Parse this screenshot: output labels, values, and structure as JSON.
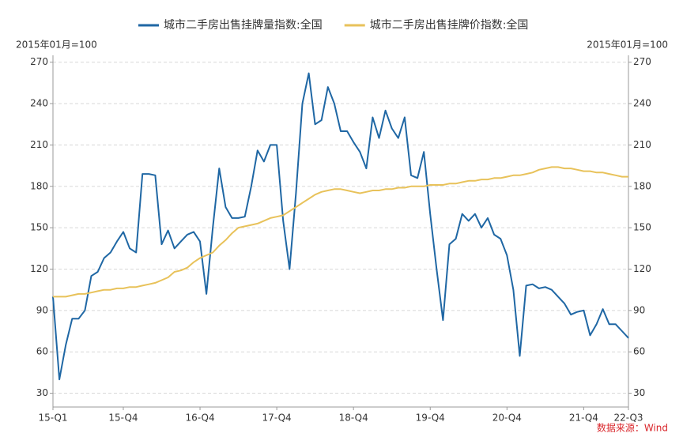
{
  "chart_data": {
    "type": "line",
    "legend_position": "top",
    "y_label": "2015年01月=100",
    "y2_label": "2015年01月=100",
    "source": "数据来源：Wind",
    "categories": [
      "15-Q1",
      null,
      null,
      null,
      null,
      null,
      null,
      null,
      null,
      null,
      null,
      "15-Q4",
      null,
      null,
      null,
      null,
      null,
      null,
      null,
      null,
      null,
      null,
      null,
      "16-Q4",
      null,
      null,
      null,
      null,
      null,
      null,
      null,
      null,
      null,
      null,
      null,
      "17-Q4",
      null,
      null,
      null,
      null,
      null,
      null,
      null,
      null,
      null,
      null,
      null,
      "18-Q4",
      null,
      null,
      null,
      null,
      null,
      null,
      null,
      null,
      null,
      null,
      null,
      "19-Q4",
      null,
      null,
      null,
      null,
      null,
      null,
      null,
      null,
      null,
      null,
      null,
      "20-Q4",
      null,
      null,
      null,
      null,
      null,
      null,
      null,
      null,
      null,
      null,
      null,
      "21-Q4",
      null,
      null,
      null,
      null,
      null,
      null,
      "22-Q3"
    ],
    "series": [
      {
        "name": "城市二手房出售挂牌量指数:全国",
        "color": "#1f67a4",
        "values": [
          100,
          40,
          65,
          84,
          84,
          90,
          115,
          118,
          128,
          132,
          140,
          147,
          135,
          132,
          189,
          189,
          188,
          138,
          148,
          135,
          140,
          145,
          147,
          140,
          102,
          150,
          193,
          165,
          157,
          157,
          158,
          180,
          206,
          198,
          210,
          210,
          155,
          120,
          175,
          240,
          262,
          225,
          228,
          252,
          240,
          220,
          220,
          212,
          205,
          193,
          230,
          215,
          235,
          222,
          215,
          230,
          188,
          186,
          205,
          160,
          120,
          83,
          138,
          142,
          160,
          155,
          160,
          150,
          157,
          145,
          142,
          130,
          105,
          57,
          108,
          109,
          106,
          107,
          105,
          100,
          95,
          87,
          89,
          90,
          72,
          80,
          91,
          80,
          80,
          75,
          70
        ]
      },
      {
        "name": "城市二手房出售挂牌价指数:全国",
        "color": "#e8c25a",
        "values": [
          100,
          100,
          100,
          101,
          102,
          102,
          103,
          104,
          105,
          105,
          106,
          106,
          107,
          107,
          108,
          109,
          110,
          112,
          114,
          118,
          119,
          121,
          125,
          128,
          130,
          132,
          137,
          141,
          146,
          150,
          151,
          152,
          153,
          155,
          157,
          158,
          159,
          162,
          165,
          168,
          171,
          174,
          176,
          177,
          178,
          178,
          177,
          176,
          175,
          176,
          177,
          177,
          178,
          178,
          179,
          179,
          180,
          180,
          180,
          181,
          181,
          181,
          182,
          182,
          183,
          184,
          184,
          185,
          185,
          186,
          186,
          187,
          188,
          188,
          189,
          190,
          192,
          193,
          194,
          194,
          193,
          193,
          192,
          191,
          191,
          190,
          190,
          189,
          188,
          187,
          187
        ]
      }
    ],
    "ylim": [
      20,
      275
    ],
    "yticks": [
      30,
      60,
      90,
      120,
      150,
      180,
      210,
      240,
      270
    ],
    "y2lim": [
      20,
      275
    ],
    "y2ticks": [
      30,
      60,
      90,
      120,
      150,
      180,
      210,
      240,
      270
    ],
    "grid": true
  }
}
